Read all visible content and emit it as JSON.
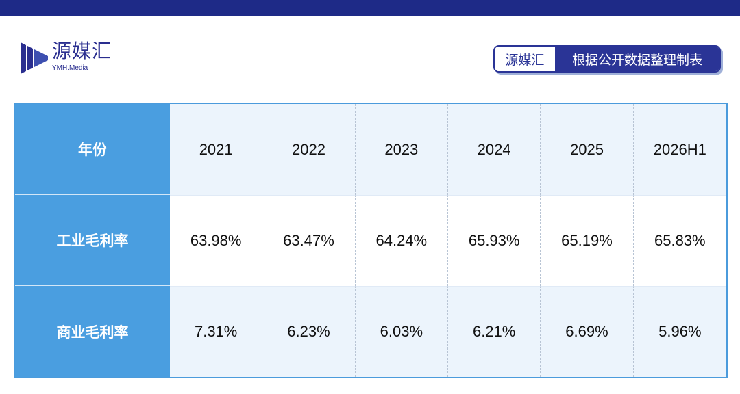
{
  "header": {
    "brand_name": "源媒汇",
    "brand_sub": "YMH.Media",
    "brand_color": "#2a2e8f",
    "band_color": "#1e2a87"
  },
  "source_tag": {
    "left": "源媒汇",
    "right": "根据公开数据整理制表"
  },
  "table": {
    "header_label": "年份",
    "columns": [
      "2021",
      "2022",
      "2023",
      "2024",
      "2025",
      "2026H1"
    ],
    "rows": [
      {
        "label": "工业毛利率",
        "values": [
          "63.98%",
          "63.47%",
          "64.24%",
          "65.93%",
          "65.19%",
          "65.83%"
        ]
      },
      {
        "label": "商业毛利率",
        "values": [
          "7.31%",
          "6.23%",
          "6.03%",
          "6.21%",
          "6.69%",
          "5.96%"
        ]
      }
    ],
    "header_bg": "#4a9ee0",
    "alt_row_bg": "#ecf4fc"
  }
}
